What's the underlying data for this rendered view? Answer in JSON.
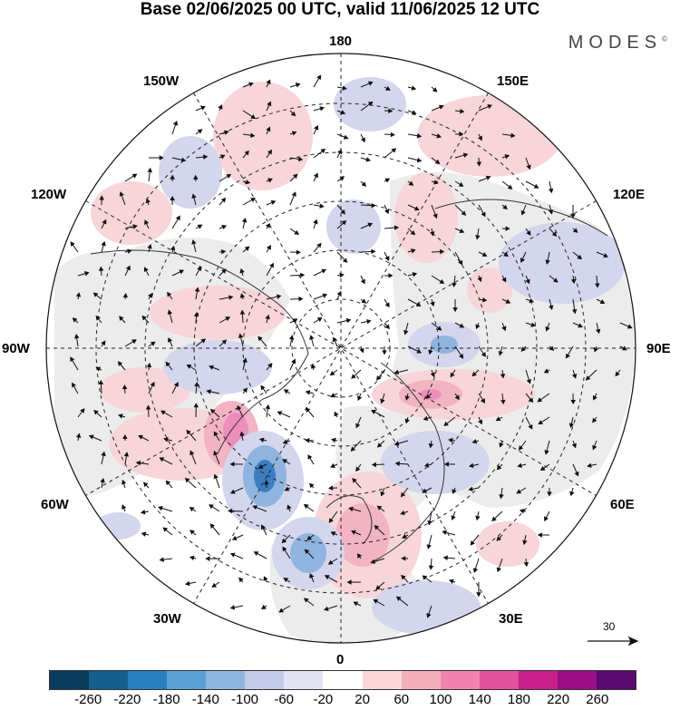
{
  "title": "Base 02/06/2025 00 UTC, valid 11/06/2025 12 UTC",
  "brand": "MODES",
  "brand_mark": "©",
  "labels": {
    "top": "180",
    "bottom": "0",
    "left": "90W",
    "right": "90E",
    "w150": "150W",
    "e150": "150E",
    "w120": "120W",
    "e120": "120E",
    "w60": "60W",
    "e60": "60E",
    "w30": "30W",
    "e30": "30E"
  },
  "reference_vector": "30",
  "colorbar": {
    "colors": [
      "#0b3c5d",
      "#155f8f",
      "#2a7fbe",
      "#5aa0d4",
      "#8fb6e0",
      "#c3cbe6",
      "#e3e2f2",
      "#ffffff",
      "#fbd8d8",
      "#f6afbd",
      "#f083ad",
      "#e2529d",
      "#c91f8a",
      "#9c0e83",
      "#5b0a6f"
    ],
    "ticks": [
      "-260",
      "-220",
      "-180",
      "-140",
      "-100",
      "-60",
      "-20",
      "20",
      "60",
      "100",
      "140",
      "180",
      "220",
      "260"
    ]
  },
  "colors": {
    "land_shading": "#ececec",
    "positive_anomaly": "#f4c6cc",
    "strong_positive": "#ee8fbd",
    "negative_anomaly": "#c8cde7",
    "strong_negative": "#3d7ec1"
  }
}
